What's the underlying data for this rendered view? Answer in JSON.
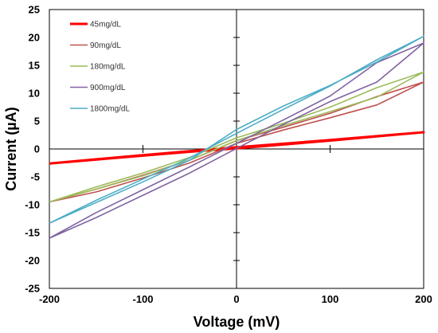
{
  "chart_data": {
    "type": "line",
    "xlabel": "Voltage (mV)",
    "ylabel": "Current (µA)",
    "xlim": [
      -200,
      200
    ],
    "ylim": [
      -25,
      25
    ],
    "x_ticks": [
      -200,
      -100,
      0,
      100,
      200
    ],
    "y_ticks": [
      -25,
      -20,
      -15,
      -10,
      -5,
      0,
      5,
      10,
      15,
      20,
      25
    ],
    "grid": false,
    "legend_position": "top-left inside plot",
    "series": [
      {
        "name": "45mg/dL",
        "color": "#ff0000",
        "width": 3,
        "x": [
          -200,
          -100,
          -50,
          0,
          100,
          200,
          100,
          0,
          -50,
          -100,
          -200
        ],
        "y": [
          -2.6,
          -1.2,
          -0.5,
          0.1,
          1.5,
          3.0,
          1.6,
          0.3,
          -0.4,
          -1.1,
          -2.6
        ]
      },
      {
        "name": "90mg/dL",
        "color": "#c0504d",
        "width": 1.6,
        "x": [
          -200,
          -150,
          -100,
          -50,
          0,
          50,
          100,
          150,
          200,
          150,
          100,
          50,
          0,
          -50,
          -100,
          -150,
          -200
        ],
        "y": [
          -9.5,
          -7.7,
          -5.2,
          -2.5,
          1.0,
          3.4,
          5.6,
          7.9,
          12.0,
          9.4,
          6.4,
          3.9,
          1.5,
          -2.0,
          -4.7,
          -7.2,
          -9.5
        ]
      },
      {
        "name": "180mg/dL",
        "color": "#9bbb59",
        "width": 1.6,
        "x": [
          -200,
          -150,
          -100,
          -50,
          0,
          50,
          100,
          150,
          200,
          150,
          100,
          50,
          0,
          -50,
          -100,
          -150,
          -200
        ],
        "y": [
          -9.5,
          -7.2,
          -4.8,
          -2.0,
          1.5,
          4.2,
          6.7,
          9.3,
          13.8,
          11.0,
          7.5,
          4.6,
          2.0,
          -1.5,
          -4.3,
          -6.8,
          -9.5
        ]
      },
      {
        "name": "900mg/dL",
        "color": "#8064a2",
        "width": 1.6,
        "x": [
          -200,
          -150,
          -100,
          -50,
          0,
          50,
          100,
          150,
          200,
          150,
          100,
          50,
          0,
          -50,
          -100,
          -150,
          -200
        ],
        "y": [
          -16.0,
          -12.3,
          -8.3,
          -4.3,
          0.1,
          4.4,
          8.5,
          12.0,
          19.0,
          15.5,
          9.5,
          5.2,
          1.0,
          -3.2,
          -7.3,
          -11.4,
          -16.0
        ]
      },
      {
        "name": "1800mg/dL",
        "color": "#4bacc6",
        "width": 1.6,
        "x": [
          -200,
          -150,
          -100,
          -50,
          0,
          50,
          100,
          150,
          200,
          150,
          100,
          50,
          0,
          -50,
          -100,
          -150,
          -200
        ],
        "y": [
          -13.3,
          -9.6,
          -5.9,
          -2.0,
          3.5,
          7.7,
          11.4,
          15.6,
          20.2,
          16.0,
          11.3,
          7.1,
          2.8,
          -1.6,
          -5.4,
          -9.2,
          -13.3
        ]
      }
    ]
  }
}
